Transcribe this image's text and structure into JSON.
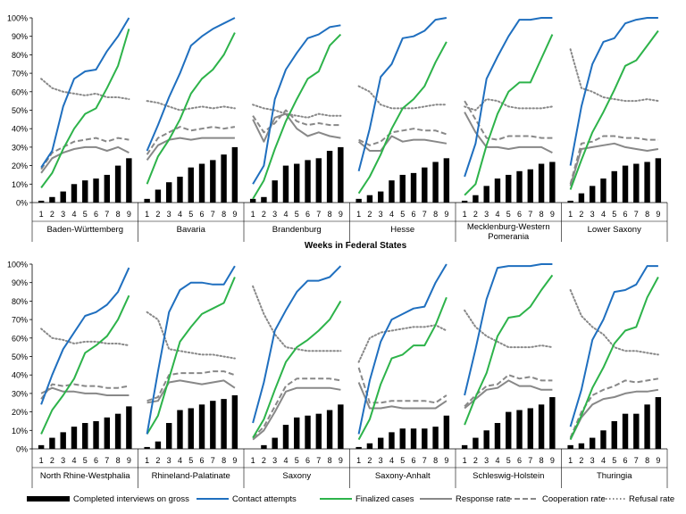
{
  "chart_data": {
    "type": "panel-line-bar",
    "title": "",
    "xlabel": "Weeks in Federal States",
    "ylabel": "",
    "ylim": [
      0,
      100
    ],
    "yticks": [
      "0%",
      "10%",
      "20%",
      "30%",
      "40%",
      "50%",
      "60%",
      "70%",
      "80%",
      "90%",
      "100%"
    ],
    "weeks": [
      "1",
      "2",
      "3",
      "4",
      "5",
      "6",
      "7",
      "8",
      "9"
    ],
    "grid": false,
    "legend_position": "bottom",
    "series_styles": [
      {
        "key": "completed",
        "name": "Completed interviews on gross",
        "mark": "bar",
        "color": "#000000"
      },
      {
        "key": "contact",
        "name": "Contact attempts",
        "mark": "line",
        "dash": "solid",
        "color": "#1f6fbf"
      },
      {
        "key": "finalized",
        "name": "Finalized cases",
        "mark": "line",
        "dash": "solid",
        "color": "#2db34a"
      },
      {
        "key": "response",
        "name": "Response rate",
        "mark": "line",
        "dash": "solid",
        "color": "#888888"
      },
      {
        "key": "cooperation",
        "name": "Cooperation rate",
        "mark": "line",
        "dash": "dashed",
        "color": "#888888"
      },
      {
        "key": "refusal",
        "name": "Refusal rate",
        "mark": "line",
        "dash": "dotted",
        "color": "#888888"
      }
    ],
    "panels": [
      {
        "state": "Baden-Württemberg",
        "completed": [
          1,
          3,
          6,
          10,
          12,
          13,
          15,
          20,
          24
        ],
        "contact": [
          19,
          28,
          52,
          67,
          71,
          72,
          82,
          90,
          100
        ],
        "finalized": [
          8,
          16,
          29,
          40,
          48,
          51,
          62,
          74,
          94
        ],
        "response": [
          16,
          24,
          27,
          29,
          30,
          30,
          28,
          30,
          27
        ],
        "cooperation": [
          18,
          27,
          30,
          33,
          34,
          35,
          33,
          35,
          34
        ],
        "refusal": [
          67,
          62,
          60,
          59,
          58,
          59,
          57,
          57,
          56
        ]
      },
      {
        "state": "Bavaria",
        "completed": [
          2,
          7,
          11,
          14,
          19,
          21,
          23,
          26,
          30
        ],
        "contact": [
          28,
          42,
          57,
          70,
          85,
          90,
          94,
          97,
          100
        ],
        "finalized": [
          10,
          25,
          34,
          45,
          59,
          67,
          72,
          80,
          92
        ],
        "response": [
          23,
          31,
          34,
          35,
          34,
          35,
          35,
          35,
          35
        ],
        "cooperation": [
          26,
          35,
          38,
          41,
          39,
          40,
          41,
          40,
          41
        ],
        "refusal": [
          55,
          54,
          52,
          50,
          51,
          52,
          51,
          52,
          51
        ]
      },
      {
        "state": "Brandenburg",
        "completed": [
          2,
          3,
          12,
          20,
          21,
          23,
          24,
          28,
          30
        ],
        "contact": [
          10,
          20,
          56,
          72,
          81,
          89,
          91,
          95,
          96
        ],
        "finalized": [
          2,
          12,
          29,
          44,
          56,
          67,
          71,
          85,
          91
        ],
        "response": [
          45,
          33,
          46,
          48,
          40,
          36,
          38,
          36,
          35
        ],
        "cooperation": [
          47,
          38,
          43,
          50,
          44,
          42,
          43,
          42,
          42
        ],
        "refusal": [
          53,
          51,
          50,
          48,
          47,
          46,
          48,
          47,
          47
        ]
      },
      {
        "state": "Hesse",
        "completed": [
          2,
          4,
          6,
          12,
          15,
          16,
          19,
          22,
          24
        ],
        "contact": [
          17,
          40,
          68,
          75,
          89,
          90,
          93,
          99,
          100
        ],
        "finalized": [
          5,
          14,
          26,
          40,
          51,
          56,
          63,
          76,
          87
        ],
        "response": [
          33,
          28,
          28,
          36,
          33,
          34,
          34,
          33,
          32
        ],
        "cooperation": [
          34,
          31,
          33,
          38,
          39,
          40,
          39,
          39,
          37
        ],
        "refusal": [
          63,
          60,
          53,
          51,
          51,
          51,
          52,
          53,
          53
        ]
      },
      {
        "state": "Mecklenburg-Western Pomerania",
        "completed": [
          1,
          4,
          9,
          13,
          15,
          17,
          18,
          21,
          22
        ],
        "contact": [
          14,
          32,
          67,
          79,
          90,
          99,
          99,
          100,
          100
        ],
        "finalized": [
          4,
          10,
          31,
          48,
          60,
          65,
          65,
          78,
          91
        ],
        "response": [
          49,
          38,
          30,
          30,
          29,
          30,
          30,
          30,
          27
        ],
        "cooperation": [
          55,
          45,
          35,
          34,
          36,
          36,
          36,
          35,
          35
        ],
        "refusal": [
          52,
          50,
          56,
          55,
          52,
          51,
          51,
          51,
          52
        ]
      },
      {
        "state": "Lower Saxony",
        "completed": [
          1,
          5,
          9,
          13,
          17,
          20,
          21,
          22,
          24
        ],
        "contact": [
          20,
          52,
          75,
          87,
          89,
          97,
          99,
          100,
          100
        ],
        "finalized": [
          7,
          23,
          38,
          49,
          61,
          74,
          77,
          85,
          93
        ],
        "response": [
          9,
          29,
          30,
          31,
          32,
          30,
          29,
          28,
          29
        ],
        "cooperation": [
          10,
          32,
          33,
          36,
          36,
          35,
          35,
          34,
          34
        ],
        "refusal": [
          83,
          62,
          60,
          57,
          56,
          55,
          55,
          56,
          55
        ]
      },
      {
        "state": "North Rhine-Westphalia",
        "completed": [
          2,
          6,
          9,
          12,
          14,
          15,
          17,
          19,
          23
        ],
        "contact": [
          24,
          40,
          54,
          63,
          72,
          74,
          78,
          85,
          98
        ],
        "finalized": [
          8,
          21,
          29,
          38,
          52,
          56,
          61,
          70,
          83
        ],
        "response": [
          30,
          33,
          31,
          31,
          30,
          30,
          29,
          29,
          29
        ],
        "cooperation": [
          27,
          35,
          34,
          35,
          34,
          34,
          33,
          33,
          34
        ],
        "refusal": [
          65,
          60,
          59,
          57,
          58,
          58,
          57,
          57,
          56
        ]
      },
      {
        "state": "Rhineland-Palatinate",
        "completed": [
          1,
          4,
          14,
          21,
          22,
          24,
          26,
          27,
          29
        ],
        "contact": [
          8,
          42,
          74,
          86,
          90,
          90,
          89,
          89,
          99
        ],
        "finalized": [
          8,
          18,
          38,
          58,
          66,
          73,
          76,
          79,
          93
        ],
        "response": [
          25,
          26,
          36,
          37,
          36,
          35,
          36,
          37,
          33
        ],
        "cooperation": [
          26,
          28,
          40,
          41,
          41,
          41,
          42,
          42,
          40
        ],
        "refusal": [
          74,
          70,
          54,
          53,
          52,
          51,
          51,
          50,
          49
        ]
      },
      {
        "state": "Saxony",
        "completed": [
          0,
          2,
          6,
          13,
          17,
          18,
          19,
          21,
          24
        ],
        "contact": [
          14,
          36,
          64,
          75,
          85,
          91,
          91,
          93,
          99
        ],
        "finalized": [
          6,
          16,
          32,
          47,
          55,
          59,
          64,
          70,
          80
        ],
        "response": [
          5,
          10,
          20,
          31,
          33,
          33,
          33,
          33,
          32
        ],
        "cooperation": [
          6,
          12,
          23,
          34,
          38,
          38,
          38,
          38,
          37
        ],
        "refusal": [
          88,
          73,
          62,
          55,
          54,
          53,
          53,
          53,
          53
        ]
      },
      {
        "state": "Saxony-Anhalt",
        "completed": [
          1,
          3,
          6,
          9,
          11,
          11,
          11,
          12,
          18
        ],
        "contact": [
          8,
          37,
          58,
          70,
          73,
          76,
          77,
          90,
          100
        ],
        "finalized": [
          5,
          16,
          35,
          49,
          51,
          56,
          56,
          67,
          82
        ],
        "response": [
          36,
          22,
          22,
          23,
          22,
          22,
          22,
          22,
          26
        ],
        "cooperation": [
          44,
          25,
          25,
          26,
          26,
          26,
          26,
          25,
          29
        ],
        "refusal": [
          47,
          60,
          63,
          64,
          65,
          66,
          66,
          67,
          64
        ]
      },
      {
        "state": "Schleswig-Holstein",
        "completed": [
          2,
          6,
          10,
          14,
          20,
          21,
          22,
          24,
          28
        ],
        "contact": [
          29,
          54,
          81,
          98,
          99,
          99,
          99,
          100,
          100
        ],
        "finalized": [
          13,
          28,
          41,
          61,
          71,
          72,
          77,
          86,
          94
        ],
        "response": [
          22,
          27,
          32,
          33,
          37,
          34,
          34,
          32,
          32
        ],
        "cooperation": [
          23,
          29,
          34,
          35,
          40,
          38,
          39,
          37,
          37
        ],
        "refusal": [
          75,
          66,
          61,
          58,
          55,
          55,
          55,
          56,
          55
        ]
      },
      {
        "state": "Thuringia",
        "completed": [
          2,
          3,
          6,
          10,
          15,
          19,
          19,
          24,
          28
        ],
        "contact": [
          12,
          32,
          59,
          70,
          85,
          86,
          89,
          99,
          99
        ],
        "finalized": [
          5,
          18,
          33,
          44,
          57,
          64,
          66,
          82,
          93
        ],
        "response": [
          5,
          17,
          24,
          27,
          28,
          30,
          31,
          31,
          32
        ],
        "cooperation": [
          6,
          20,
          29,
          32,
          34,
          37,
          36,
          37,
          38
        ],
        "refusal": [
          86,
          72,
          66,
          62,
          55,
          53,
          53,
          52,
          51
        ]
      }
    ]
  }
}
